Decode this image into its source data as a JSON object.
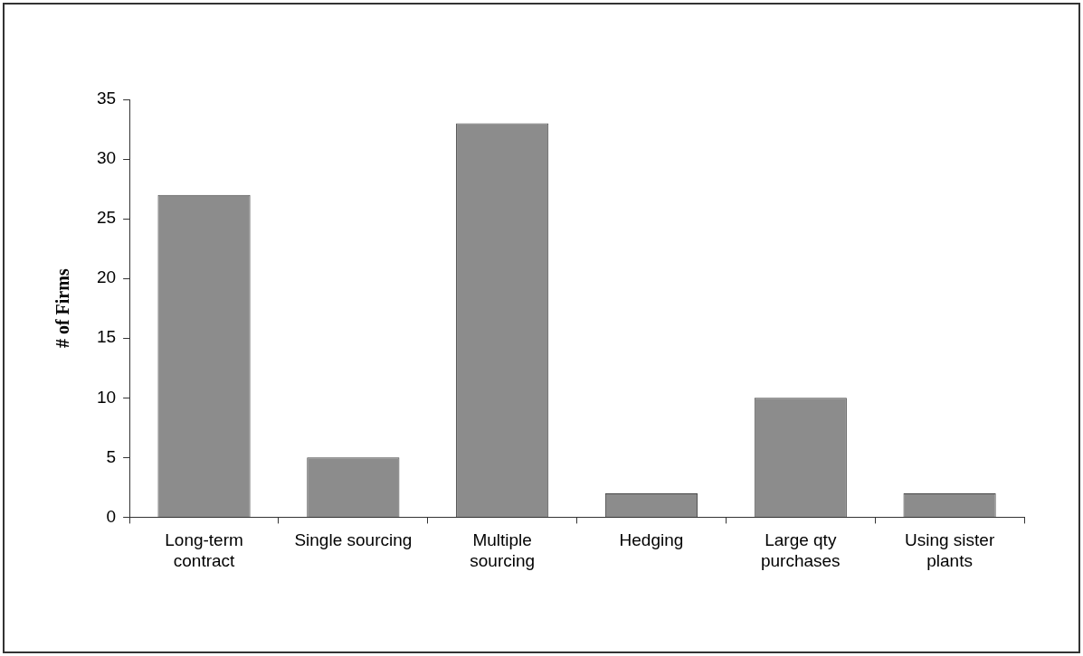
{
  "chart_data": {
    "type": "bar",
    "ylabel": "# of Firms",
    "categories": [
      "Long-term contract",
      "Single sourcing",
      "Multiple sourcing",
      "Hedging",
      "Large qty purchases",
      "Using sister plants"
    ],
    "values": [
      27,
      5,
      33,
      2,
      10,
      2
    ],
    "color": "#8c8c8c",
    "ylim": [
      0,
      35
    ],
    "yticks": [
      0,
      5,
      10,
      15,
      20,
      25,
      30,
      35
    ],
    "grid": false
  }
}
